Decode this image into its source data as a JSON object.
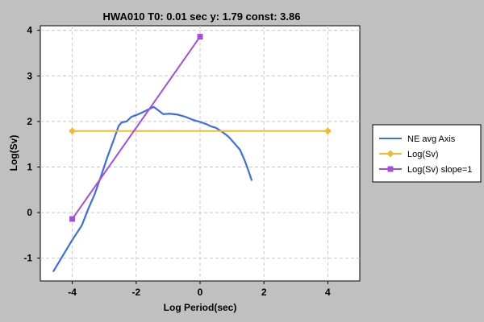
{
  "chart_data": {
    "type": "line",
    "title": "HWA010 T0: 0.01 sec  y: 1.79 const: 3.86",
    "xlabel": "Log Period(sec)",
    "ylabel": "Log(Sv)",
    "xlim": [
      -5,
      5
    ],
    "ylim": [
      -1.5,
      4.1
    ],
    "xticks": [
      -4,
      -2,
      0,
      2,
      4
    ],
    "yticks": [
      -1,
      0,
      1,
      2,
      3,
      4
    ],
    "grid": true,
    "legend_position": "right",
    "background": "#c0c0c0",
    "plot_background": "#ffffff",
    "series": [
      {
        "name": "NE avg Axis",
        "color": "#3a6fe8",
        "marker": "none",
        "points": [
          [
            -4.6,
            -1.3
          ],
          [
            -4.3,
            -0.95
          ],
          [
            -4.0,
            -0.6
          ],
          [
            -3.7,
            -0.28
          ],
          [
            -3.5,
            0.08
          ],
          [
            -3.3,
            0.4
          ],
          [
            -3.1,
            0.8
          ],
          [
            -2.9,
            1.22
          ],
          [
            -2.7,
            1.6
          ],
          [
            -2.55,
            1.9
          ],
          [
            -2.45,
            1.98
          ],
          [
            -2.3,
            2.0
          ],
          [
            -2.15,
            2.1
          ],
          [
            -2.0,
            2.14
          ],
          [
            -1.8,
            2.2
          ],
          [
            -1.6,
            2.27
          ],
          [
            -1.45,
            2.32
          ],
          [
            -1.3,
            2.24
          ],
          [
            -1.15,
            2.16
          ],
          [
            -0.95,
            2.17
          ],
          [
            -0.7,
            2.15
          ],
          [
            -0.45,
            2.1
          ],
          [
            -0.2,
            2.03
          ],
          [
            0.0,
            1.99
          ],
          [
            0.2,
            1.94
          ],
          [
            0.35,
            1.89
          ],
          [
            0.5,
            1.86
          ],
          [
            0.7,
            1.77
          ],
          [
            0.9,
            1.66
          ],
          [
            1.1,
            1.5
          ],
          [
            1.25,
            1.38
          ],
          [
            1.4,
            1.14
          ],
          [
            1.55,
            0.85
          ],
          [
            1.62,
            0.7
          ]
        ]
      },
      {
        "name": "Log(Sv)",
        "color": "#f5b930",
        "marker": "diamond",
        "points": [
          [
            -4.0,
            1.79
          ],
          [
            4.0,
            1.79
          ]
        ]
      },
      {
        "name": "Log(Sv) slope=1",
        "color": "#a64de0",
        "marker": "square",
        "points": [
          [
            -4.0,
            -0.14
          ],
          [
            0.0,
            3.86
          ]
        ]
      }
    ]
  }
}
